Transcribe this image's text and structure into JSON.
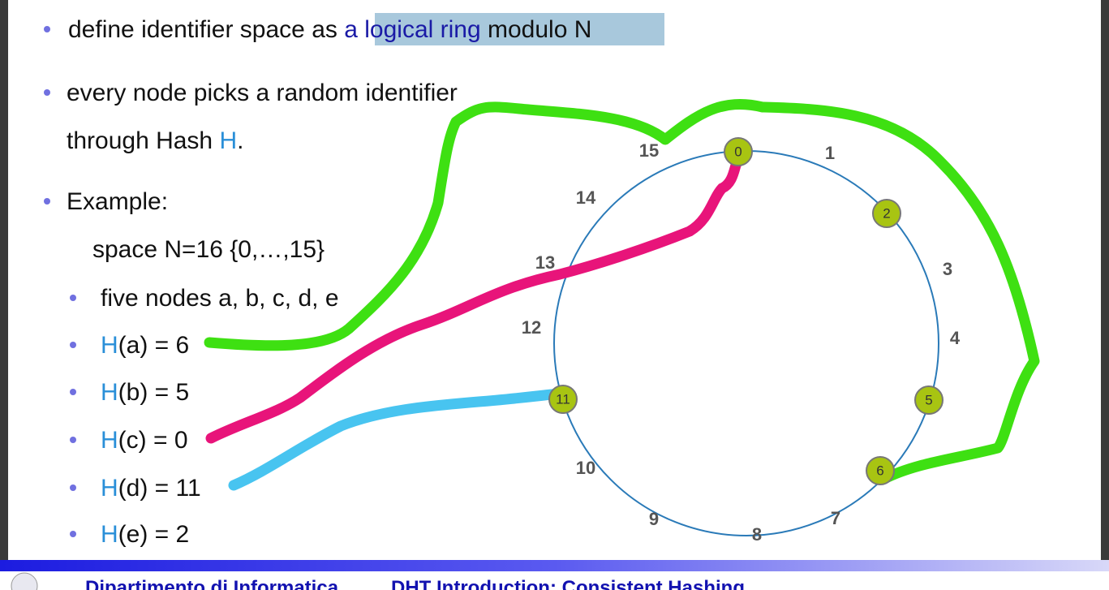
{
  "bullets": [
    {
      "parts": [
        "define identifier space as ",
        "a logical ring",
        " modulo N"
      ]
    },
    {
      "parts": [
        "every node picks a random identifier"
      ]
    },
    {
      "parts": [
        "through Hash ",
        "H",
        "."
      ]
    },
    {
      "parts": [
        "Example:"
      ]
    },
    {
      "parts": [
        "space N=16 {0,…,15}"
      ]
    },
    {
      "parts": [
        "five nodes a, b, c, d, e"
      ]
    },
    {
      "parts": [
        "H",
        "(a) = 6"
      ]
    },
    {
      "parts": [
        "H",
        "(b) = 5"
      ]
    },
    {
      "parts": [
        "H",
        "(c) = 0"
      ]
    },
    {
      "parts": [
        "H",
        "(d) = 11"
      ]
    },
    {
      "parts": [
        "H",
        "(e) = 2"
      ]
    }
  ],
  "ring": {
    "labels": [
      "15",
      "1",
      "3",
      "4",
      "7",
      "8",
      "9",
      "10",
      "12",
      "13",
      "14"
    ],
    "nodes": [
      "0",
      "2",
      "5",
      "6",
      "11"
    ]
  },
  "footer": {
    "department": "Dipartimento di Informatica",
    "title": "DHT Introduction: Consistent Hashing"
  }
}
